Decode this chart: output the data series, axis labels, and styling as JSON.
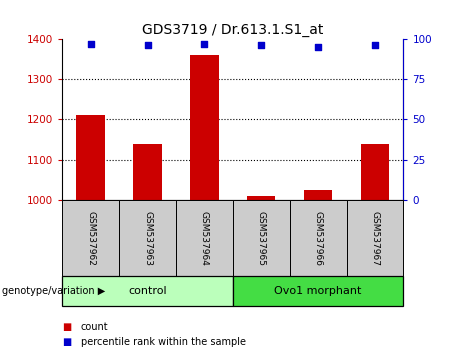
{
  "title": "GDS3719 / Dr.613.1.S1_at",
  "samples": [
    "GSM537962",
    "GSM537963",
    "GSM537964",
    "GSM537965",
    "GSM537966",
    "GSM537967"
  ],
  "bar_values": [
    1210,
    1140,
    1360,
    1010,
    1025,
    1140
  ],
  "dot_values": [
    97,
    96,
    97,
    96,
    95,
    96
  ],
  "ylim_left": [
    1000,
    1400
  ],
  "ylim_right": [
    0,
    100
  ],
  "yticks_left": [
    1000,
    1100,
    1200,
    1300,
    1400
  ],
  "yticks_right": [
    0,
    25,
    50,
    75,
    100
  ],
  "bar_color": "#cc0000",
  "dot_color": "#0000cc",
  "groups": [
    {
      "label": "control",
      "n": 3,
      "color": "#bbffbb"
    },
    {
      "label": "Ovo1 morphant",
      "n": 3,
      "color": "#44dd44"
    }
  ],
  "group_label_prefix": "genotype/variation",
  "legend_count_label": "count",
  "legend_percentile_label": "percentile rank within the sample",
  "tick_label_color_left": "#cc0000",
  "tick_label_color_right": "#0000cc",
  "bg_color_sample": "#cccccc",
  "bg_plot": "#ffffff"
}
